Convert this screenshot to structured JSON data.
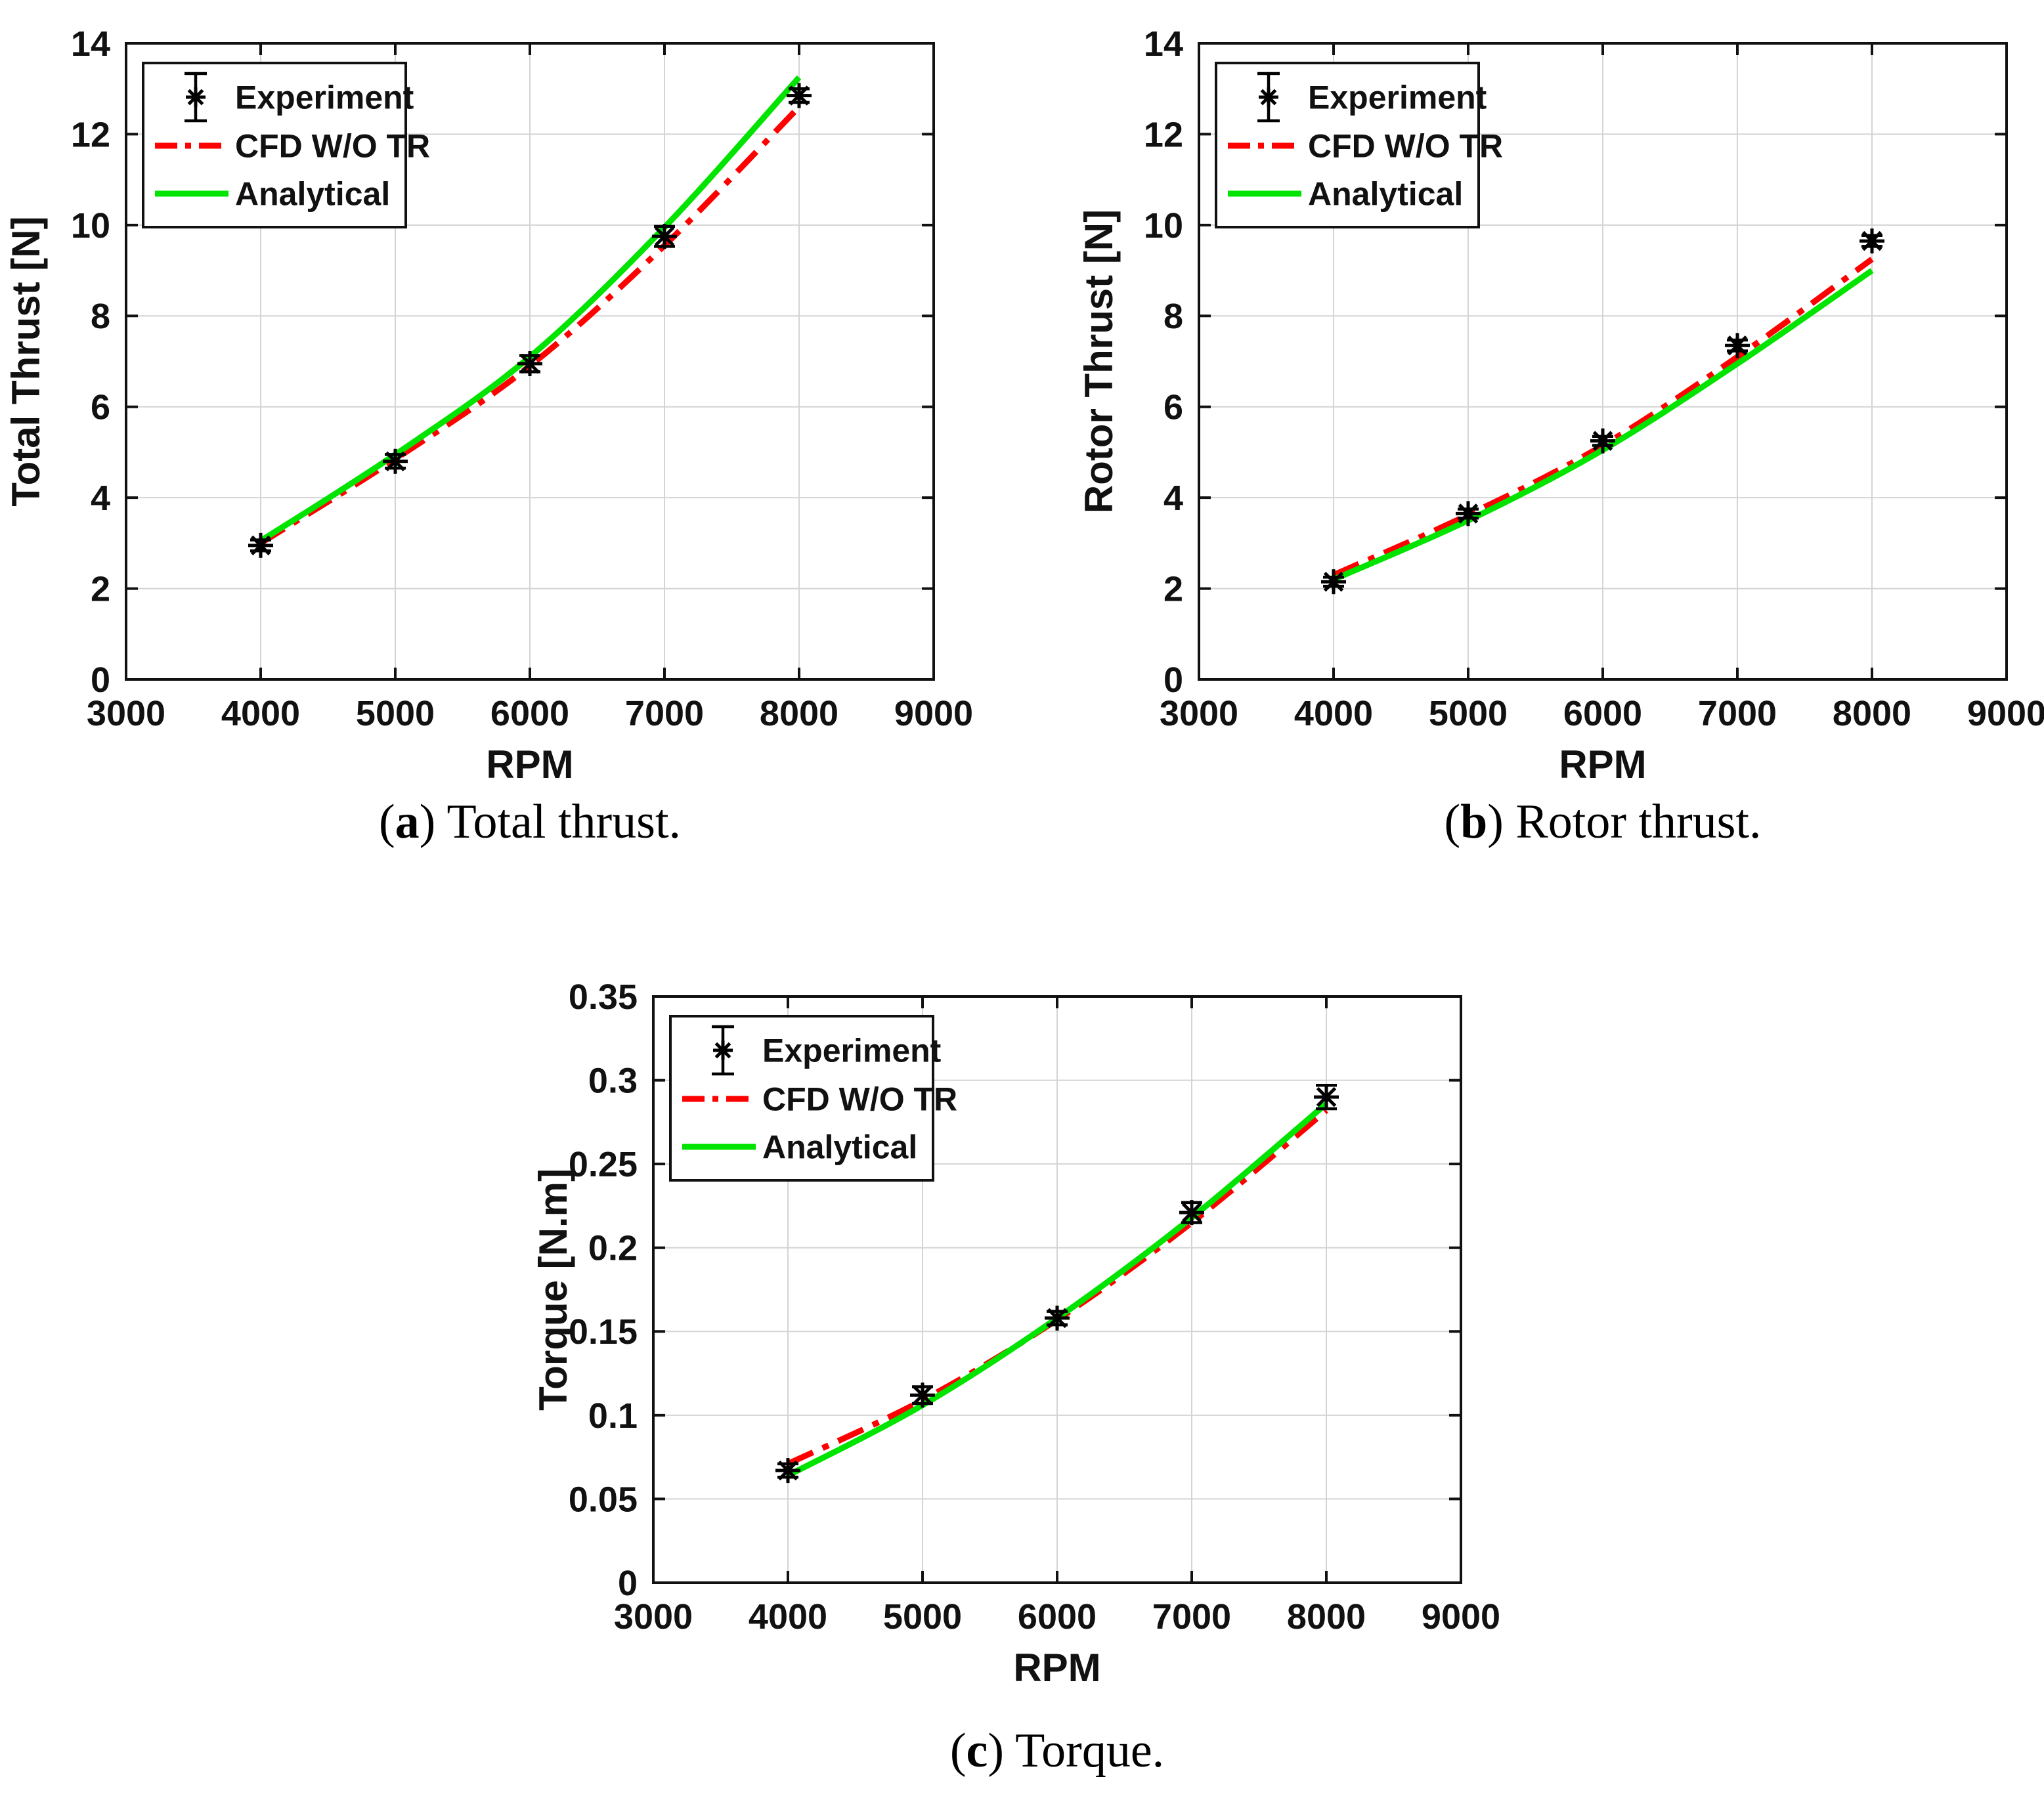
{
  "colors": {
    "experiment": "#000000",
    "cfd": "#ff0000",
    "analytical": "#00e400",
    "grid": "#d4d4d4",
    "axis": "#111111",
    "background": "#ffffff"
  },
  "legend": {
    "items": [
      {
        "label": "Experiment"
      },
      {
        "label": "CFD W/O TR"
      },
      {
        "label": "Analytical"
      }
    ],
    "position": "top-left"
  },
  "captions": {
    "a": {
      "letter": "a",
      "text": "Total thrust."
    },
    "b": {
      "letter": "b",
      "text": "Rotor thrust."
    },
    "c": {
      "letter": "c",
      "text": "Torque."
    }
  },
  "chart_data": [
    {
      "type": "line",
      "panel": "a",
      "title": "",
      "xlabel": "RPM",
      "ylabel": "Total Thrust [N]",
      "xlim": [
        3000,
        9000
      ],
      "ylim": [
        0,
        14
      ],
      "xticks": [
        3000,
        4000,
        5000,
        6000,
        7000,
        8000,
        9000
      ],
      "yticks": [
        0,
        2,
        4,
        6,
        8,
        10,
        12,
        14
      ],
      "grid": true,
      "legend_position": "top-left",
      "x": [
        4000,
        5000,
        6000,
        7000,
        8000
      ],
      "series": [
        {
          "name": "Experiment",
          "style": "errorbar",
          "color": "#000000",
          "values": [
            2.95,
            4.8,
            6.95,
            9.75,
            12.85
          ],
          "errors": [
            0.12,
            0.15,
            0.18,
            0.22,
            0.15
          ]
        },
        {
          "name": "CFD W/O TR",
          "style": "dashdot",
          "color": "#ff0000",
          "values": [
            3.0,
            4.85,
            6.9,
            9.55,
            12.6
          ]
        },
        {
          "name": "Analytical",
          "style": "solid",
          "color": "#00e400",
          "values": [
            3.05,
            4.95,
            7.1,
            9.95,
            13.25
          ]
        }
      ]
    },
    {
      "type": "line",
      "panel": "b",
      "title": "",
      "xlabel": "RPM",
      "ylabel": "Rotor Thrust [N]",
      "xlim": [
        3000,
        9000
      ],
      "ylim": [
        0,
        14
      ],
      "xticks": [
        3000,
        4000,
        5000,
        6000,
        7000,
        8000,
        9000
      ],
      "yticks": [
        0,
        2,
        4,
        6,
        8,
        10,
        12,
        14
      ],
      "grid": true,
      "legend_position": "top-left",
      "x": [
        4000,
        5000,
        6000,
        7000,
        8000
      ],
      "series": [
        {
          "name": "Experiment",
          "style": "errorbar",
          "color": "#000000",
          "values": [
            2.15,
            3.65,
            5.25,
            7.35,
            9.65
          ],
          "errors": [
            0.1,
            0.1,
            0.1,
            0.12,
            0.12
          ]
        },
        {
          "name": "CFD W/O TR",
          "style": "dashdot",
          "color": "#ff0000",
          "values": [
            2.3,
            3.62,
            5.15,
            7.1,
            9.25
          ]
        },
        {
          "name": "Analytical",
          "style": "solid",
          "color": "#00e400",
          "values": [
            2.2,
            3.5,
            5.05,
            6.95,
            9.0
          ]
        }
      ]
    },
    {
      "type": "line",
      "panel": "c",
      "title": "",
      "xlabel": "RPM",
      "ylabel": "Torque [N.m]",
      "xlim": [
        3000,
        9000
      ],
      "ylim": [
        0,
        0.35
      ],
      "xticks": [
        3000,
        4000,
        5000,
        6000,
        7000,
        8000,
        9000
      ],
      "yticks": [
        0,
        0.05,
        0.1,
        0.15,
        0.2,
        0.25,
        0.3,
        0.35
      ],
      "grid": true,
      "legend_position": "top-left",
      "x": [
        4000,
        5000,
        6000,
        7000,
        8000
      ],
      "series": [
        {
          "name": "Experiment",
          "style": "errorbar",
          "color": "#000000",
          "values": [
            0.067,
            0.112,
            0.158,
            0.221,
            0.29
          ],
          "errors": [
            0.004,
            0.005,
            0.004,
            0.006,
            0.007
          ]
        },
        {
          "name": "CFD W/O TR",
          "style": "dashdot",
          "color": "#ff0000",
          "values": [
            0.071,
            0.109,
            0.157,
            0.215,
            0.282
          ]
        },
        {
          "name": "Analytical",
          "style": "solid",
          "color": "#00e400",
          "values": [
            0.064,
            0.106,
            0.158,
            0.218,
            0.286
          ]
        }
      ]
    }
  ]
}
